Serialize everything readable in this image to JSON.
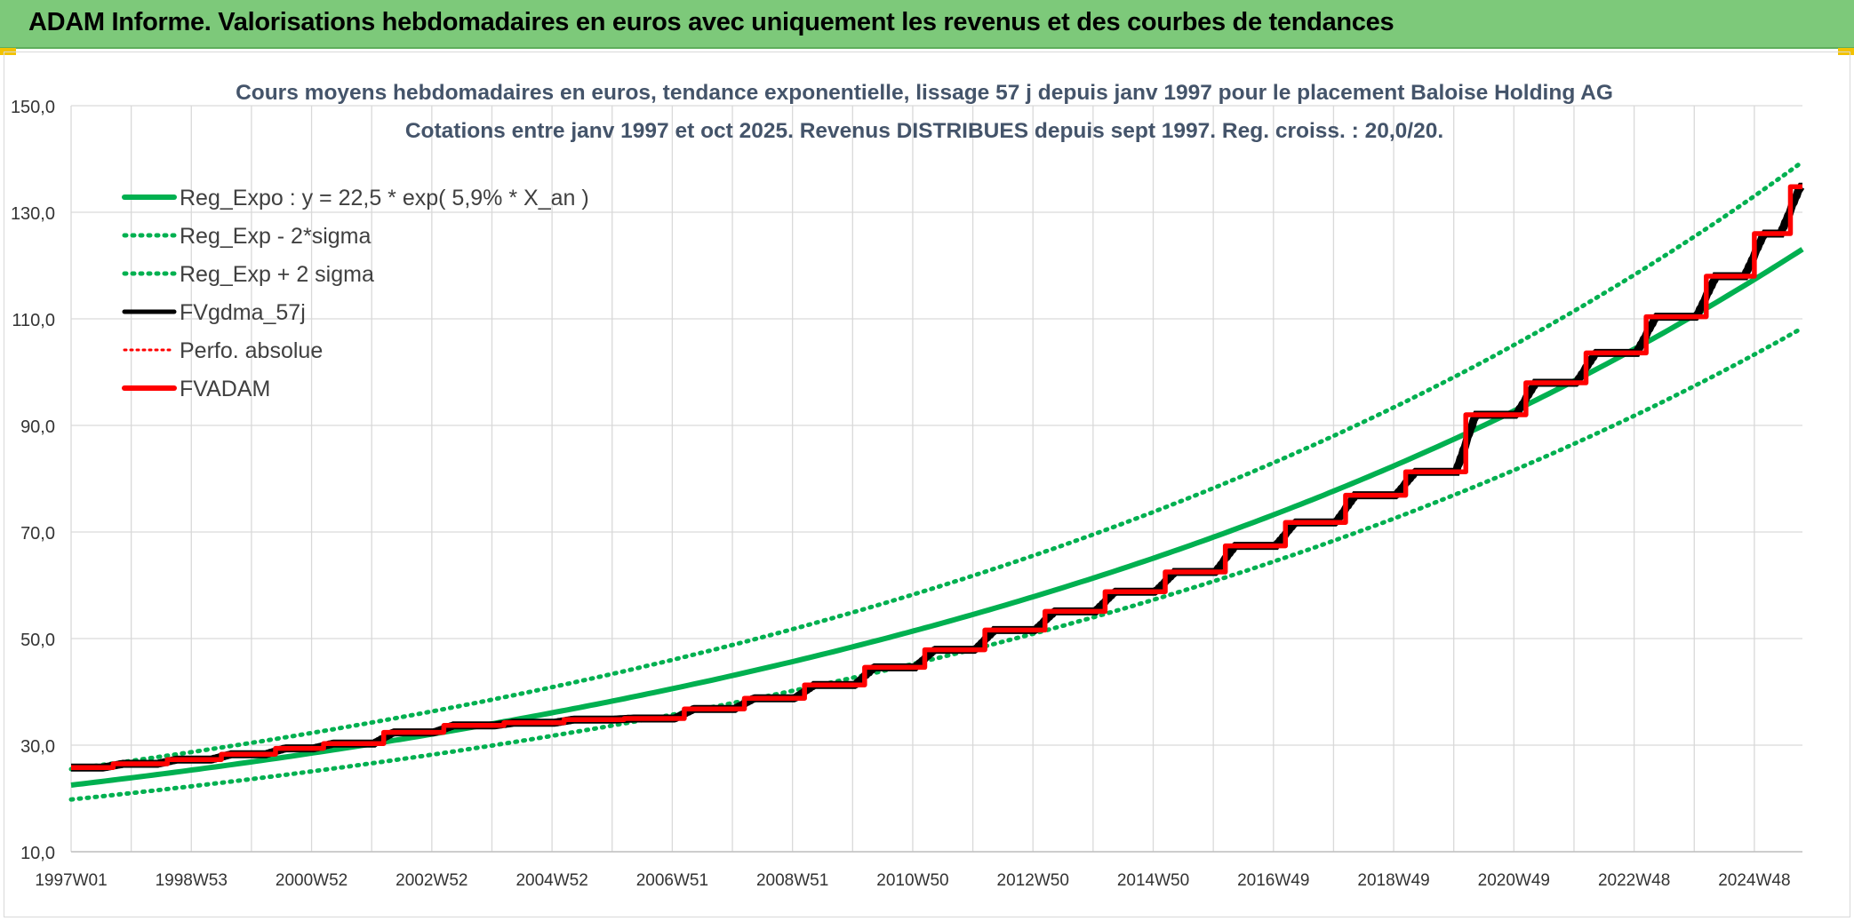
{
  "header": {
    "title": "ADAM Informe. Valorisations hebdomadaires en euros avec uniquement les revenus et des courbes de tendances"
  },
  "colors": {
    "banner": "#7dc97a",
    "trend": "#00b050",
    "fv57": "#000000",
    "fvadam": "#ff0000",
    "perfo": "#ff0000",
    "grid": "#d9d9d9"
  },
  "chart_data": {
    "type": "line",
    "title": "Cours moyens hebdomadaires en euros, tendance exponentielle, lissage 57 j depuis janv 1997 pour le placement Baloise Holding AG",
    "subtitle": "Cotations entre janv 1997 et oct 2025. Revenus DISTRIBUES depuis sept 1997. Reg. croiss. : 20,0/20.",
    "xlabel": "",
    "ylabel": "",
    "ylim": [
      10,
      150
    ],
    "yticks": [
      "10,0",
      "30,0",
      "50,0",
      "70,0",
      "90,0",
      "110,0",
      "130,0",
      "150,0"
    ],
    "x_range": [
      1997.0,
      2025.8
    ],
    "xticks": [
      {
        "label": "1997W01",
        "year": 1997.0
      },
      {
        "label": "1998W53",
        "year": 1999.0
      },
      {
        "label": "2000W52",
        "year": 2001.0
      },
      {
        "label": "2002W52",
        "year": 2003.0
      },
      {
        "label": "2004W52",
        "year": 2005.0
      },
      {
        "label": "2006W51",
        "year": 2007.0
      },
      {
        "label": "2008W51",
        "year": 2009.0
      },
      {
        "label": "2010W50",
        "year": 2011.0
      },
      {
        "label": "2012W50",
        "year": 2013.0
      },
      {
        "label": "2014W50",
        "year": 2015.0
      },
      {
        "label": "2016W49",
        "year": 2017.0
      },
      {
        "label": "2018W49",
        "year": 2019.0
      },
      {
        "label": "2020W49",
        "year": 2021.0
      },
      {
        "label": "2022W48",
        "year": 2023.0
      },
      {
        "label": "2024W48",
        "year": 2025.0
      }
    ],
    "grid": true,
    "legend_position": "top-left",
    "legend": [
      {
        "label": "Reg_Expo : y = 22,5 * exp( 5,9% *  X_an )",
        "style": "solid-thick",
        "color": "#00b050"
      },
      {
        "label": "Reg_Exp - 2*sigma",
        "style": "dotted",
        "color": "#00b050"
      },
      {
        "label": "Reg_Exp + 2 sigma",
        "style": "dotted",
        "color": "#00b050"
      },
      {
        "label": "FVgdma_57j",
        "style": "solid",
        "color": "#000000"
      },
      {
        "label": "Perfo. absolue",
        "style": "dotted-thin",
        "color": "#ff0000"
      },
      {
        "label": "FVADAM",
        "style": "solid-thick",
        "color": "#ff0000"
      }
    ],
    "series": [
      {
        "name": "Reg_Expo : y = 22,5 * exp( 5,9% *  X_an )",
        "type": "exponential",
        "a": 22.5,
        "rate": 0.059,
        "x0": 1997.0
      },
      {
        "name": "Reg_Exp - 2*sigma",
        "type": "exponential",
        "a": 19.8,
        "rate": 0.059,
        "x0": 1997.0
      },
      {
        "name": "Reg_Exp + 2 sigma",
        "type": "exponential",
        "a": 25.5,
        "rate": 0.059,
        "x0": 1997.0
      },
      {
        "name": "FVADAM",
        "type": "steps",
        "steps": [
          [
            1997.0,
            25.8
          ],
          [
            1997.7,
            26.5
          ],
          [
            1998.6,
            27.3
          ],
          [
            1999.5,
            28.3
          ],
          [
            2000.4,
            29.4
          ],
          [
            2001.2,
            30.3
          ],
          [
            2002.2,
            32.4
          ],
          [
            2003.2,
            33.7
          ],
          [
            2004.2,
            34.2
          ],
          [
            2005.2,
            34.8
          ],
          [
            2006.2,
            35.0
          ],
          [
            2007.2,
            36.8
          ],
          [
            2008.2,
            38.8
          ],
          [
            2009.2,
            41.3
          ],
          [
            2010.2,
            44.6
          ],
          [
            2011.2,
            47.9
          ],
          [
            2012.2,
            51.6
          ],
          [
            2013.2,
            55.1
          ],
          [
            2014.2,
            58.8
          ],
          [
            2015.2,
            62.5
          ],
          [
            2016.2,
            67.4
          ],
          [
            2017.2,
            71.8
          ],
          [
            2018.2,
            76.9
          ],
          [
            2019.2,
            81.3
          ],
          [
            2020.2,
            92.0
          ],
          [
            2021.2,
            98.0
          ],
          [
            2022.2,
            103.6
          ],
          [
            2023.2,
            110.4
          ],
          [
            2024.2,
            118.0
          ],
          [
            2025.0,
            126.0
          ],
          [
            2025.6,
            134.8
          ]
        ],
        "x_end": 2025.8
      },
      {
        "name": "FVgdma_57j",
        "type": "smoothed",
        "of": "FVADAM",
        "window_years": 0.156
      }
    ]
  }
}
